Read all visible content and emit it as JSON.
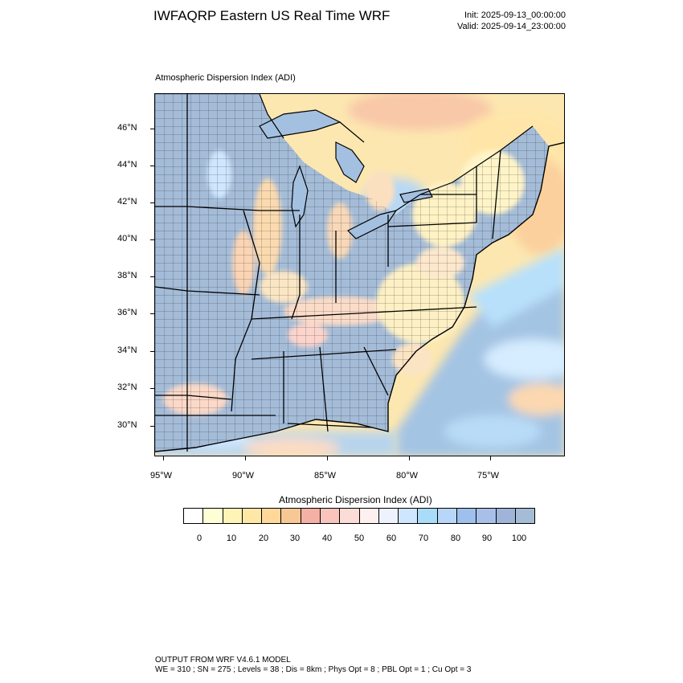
{
  "title": "IWFAQRP Eastern US Real Time WRF",
  "init": "Init: 2025-09-13_00:00:00",
  "valid": "Valid: 2025-09-14_23:00:00",
  "map_subtitle": "Atmospheric Dispersion Index   (ADI)",
  "lat_labels": [
    "46°N",
    "44°N",
    "42°N",
    "40°N",
    "38°N",
    "36°N",
    "34°N",
    "32°N",
    "30°N"
  ],
  "lon_labels": [
    "95°W",
    "90°W",
    "85°W",
    "80°W",
    "75°W"
  ],
  "colorbar": {
    "title": "Atmospheric Dispersion Index  (ADI)",
    "labels": [
      "0",
      "10",
      "20",
      "30",
      "40",
      "50",
      "60",
      "70",
      "80",
      "90",
      "100"
    ],
    "colors": [
      "#ffffff",
      "#ffffd6",
      "#fff4b8",
      "#ffe8a6",
      "#ffd89a",
      "#f8c894",
      "#f4b0a4",
      "#f8c4bc",
      "#fbdcd6",
      "#fdf0ee",
      "#eef2ff",
      "#cfe6ff",
      "#a8dcf8",
      "#b8d6f8",
      "#9fbfec",
      "#a8c0e8",
      "#9fb4d8",
      "#a4bcd6"
    ],
    "colors_note": ""
  },
  "footer": {
    "line1": "OUTPUT FROM WRF V4.6.1 MODEL",
    "line2": "WE = 310 ; SN = 275 ; Levels = 38 ; Dis = 8km ; Phys Opt = 8 ; PBL Opt = 1 ; Cu Opt = 3"
  }
}
